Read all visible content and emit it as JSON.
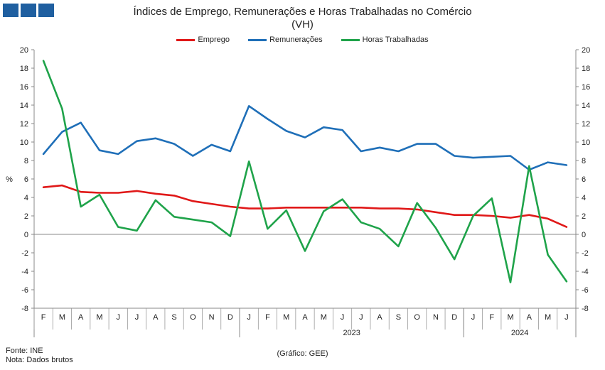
{
  "title_line1": "Índices de Emprego, Remunerações e Horas Trabalhadas no Comércio",
  "title_line2": "(VH)",
  "footer": {
    "source": "Fonte: INE",
    "note": "Nota: Dados brutos",
    "credit": "(Gráfico: GEE)"
  },
  "chart_data": {
    "type": "line",
    "ylabel": "%",
    "ylim": [
      -8,
      20
    ],
    "yticks": [
      -8,
      -6,
      -4,
      -2,
      0,
      2,
      4,
      6,
      8,
      10,
      12,
      14,
      16,
      18,
      20
    ],
    "secondary_axis": true,
    "grid": false,
    "legend_position": "top-center",
    "categories": [
      "F",
      "M",
      "A",
      "M",
      "J",
      "J",
      "A",
      "S",
      "O",
      "N",
      "D",
      "J",
      "F",
      "M",
      "A",
      "M",
      "J",
      "J",
      "A",
      "S",
      "O",
      "N",
      "D",
      "J",
      "F",
      "M",
      "A",
      "M",
      "J"
    ],
    "year_labels": [
      {
        "label": "2023",
        "start": 11,
        "end": 22
      },
      {
        "label": "2024",
        "start": 23,
        "end": 28
      }
    ],
    "series": [
      {
        "name": "Emprego",
        "color": "#e01818",
        "values": [
          5.1,
          5.3,
          4.6,
          4.5,
          4.5,
          4.7,
          4.4,
          4.2,
          3.6,
          3.3,
          3.0,
          2.8,
          2.8,
          2.9,
          2.9,
          2.9,
          2.9,
          2.9,
          2.8,
          2.8,
          2.7,
          2.4,
          2.1,
          2.1,
          2.0,
          1.8,
          2.1,
          1.7,
          0.8
        ]
      },
      {
        "name": "Remunerações",
        "color": "#1f6fb8",
        "values": [
          8.7,
          11.1,
          12.1,
          9.1,
          8.7,
          10.1,
          10.4,
          9.8,
          8.5,
          9.7,
          9.0,
          13.9,
          12.5,
          11.2,
          10.5,
          11.6,
          11.3,
          9.0,
          9.4,
          9.0,
          9.8,
          9.8,
          8.5,
          8.3,
          8.4,
          8.5,
          7.0,
          7.8,
          7.5
        ]
      },
      {
        "name": "Horas Trabalhadas",
        "color": "#1fa34a",
        "values": [
          18.8,
          13.6,
          3.0,
          4.3,
          0.8,
          0.4,
          3.7,
          1.9,
          1.6,
          1.3,
          -0.2,
          7.9,
          0.6,
          2.6,
          -1.8,
          2.5,
          3.8,
          1.3,
          0.6,
          -1.3,
          3.4,
          0.7,
          -2.7,
          2.0,
          3.9,
          -5.2,
          7.4,
          -2.2,
          -5.1
        ]
      }
    ]
  }
}
